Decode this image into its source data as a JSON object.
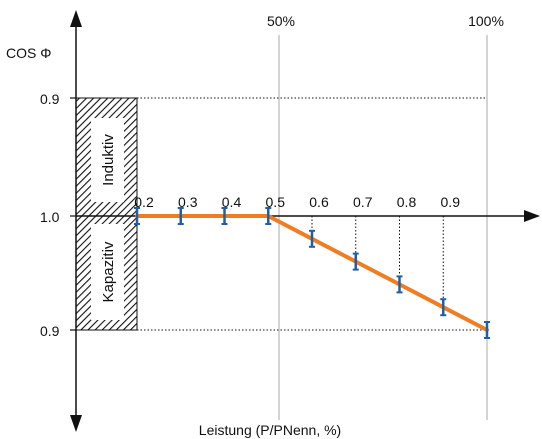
{
  "chart_data": {
    "type": "line",
    "ylabel": "COS Φ",
    "xlabel": "Leistung (P/PNenn, %)",
    "y_ticks": [
      "0.9",
      "1.0",
      "0.9"
    ],
    "x_tick_labels": [
      "0.2",
      "0.3",
      "0.4",
      "0.5",
      "0.6",
      "0.7",
      "0.8",
      "0.9"
    ],
    "top_markers": [
      "50%",
      "100%"
    ],
    "regions": [
      "Induktiv",
      "Kapazitiv"
    ],
    "series": [
      {
        "x": [
          0.2,
          0.3,
          0.4,
          0.5,
          0.6,
          0.7,
          0.8,
          0.9,
          1.0
        ],
        "y": [
          1.0,
          1.0,
          1.0,
          1.0,
          0.98,
          0.96,
          0.94,
          0.92,
          0.9
        ],
        "note_y": "signed offset: 1.0 = center, below = kapazitiv 0.9 at bottom"
      }
    ],
    "colors": {
      "line": "#ef7d22",
      "error_bars": "#1f5fa6",
      "axis": "#111111"
    }
  }
}
